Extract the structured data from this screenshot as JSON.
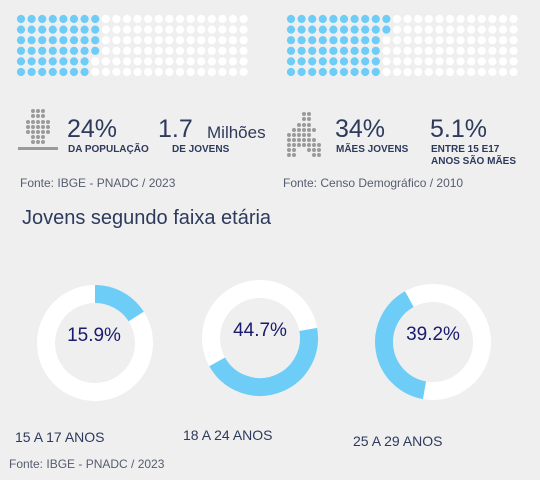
{
  "stats": {
    "left": {
      "value1": "24%",
      "label1": "DA POPULAÇÃO",
      "value2": "1.7",
      "unit2": "Milhões",
      "label2": "DE JOVENS",
      "source": "Fonte: IBGE - PNADC / 2023",
      "waffle_filled": 46
    },
    "right": {
      "value1": "34%",
      "label1": "MÃES JOVENS",
      "value2": "5.1%",
      "label2_line1": "ENTRE 15 E17",
      "label2_line2": "ANOS SÃO MÃES",
      "source": "Fonte: Censo Demográfico / 2010",
      "waffle_filled": 56
    }
  },
  "section_title": "Jovens segundo faixa etária",
  "footer_source": "Fonte: IBGE - PNADC / 2023",
  "colors": {
    "accent": "#6dcdf6",
    "track": "#ffffff",
    "text": "#2e3a5c"
  },
  "icons": {
    "left": "people-grid-icon",
    "right": "mother-child-icon"
  },
  "chart_data": {
    "type": "donut",
    "categories": [
      "15 A 17 ANOS",
      "18 A 24 ANOS",
      "25 A 29 ANOS"
    ],
    "values": [
      15.9,
      44.7,
      39.2
    ],
    "labels": [
      "15.9%",
      "44.7%",
      "39.2%"
    ]
  }
}
